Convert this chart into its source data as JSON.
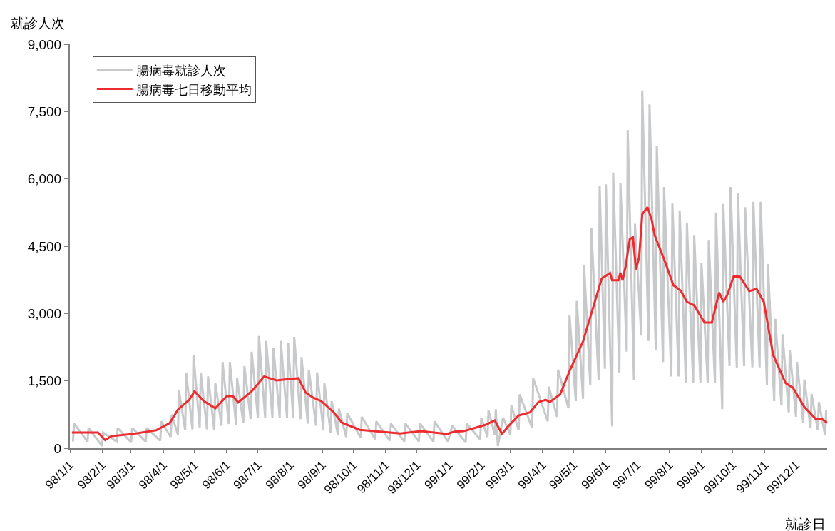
{
  "chart_data": {
    "type": "line",
    "xlabel": "就診日",
    "ylabel": "就診人次",
    "xlim": [
      "2009-01-01",
      "2010-12-31"
    ],
    "xticks": [
      {
        "value": "2009-01-01",
        "label": "98/1/1"
      },
      {
        "value": "2009-02-01",
        "label": "98/2/1"
      },
      {
        "value": "2009-03-01",
        "label": "98/3/1"
      },
      {
        "value": "2009-04-01",
        "label": "98/4/1"
      },
      {
        "value": "2009-05-01",
        "label": "98/5/1"
      },
      {
        "value": "2009-06-01",
        "label": "98/6/1"
      },
      {
        "value": "2009-07-01",
        "label": "98/7/1"
      },
      {
        "value": "2009-08-01",
        "label": "98/8/1"
      },
      {
        "value": "2009-09-01",
        "label": "98/9/1"
      },
      {
        "value": "2009-10-01",
        "label": "98/10/1"
      },
      {
        "value": "2009-11-01",
        "label": "98/11/1"
      },
      {
        "value": "2009-12-01",
        "label": "98/12/1"
      },
      {
        "value": "2010-01-01",
        "label": "99/1/1"
      },
      {
        "value": "2010-02-01",
        "label": "99/2/1"
      },
      {
        "value": "2010-03-01",
        "label": "99/3/1"
      },
      {
        "value": "2010-04-01",
        "label": "99/4/1"
      },
      {
        "value": "2010-05-01",
        "label": "99/5/1"
      },
      {
        "value": "2010-06-01",
        "label": "99/6/1"
      },
      {
        "value": "2010-07-01",
        "label": "99/7/1"
      },
      {
        "value": "2010-08-01",
        "label": "99/8/1"
      },
      {
        "value": "2010-09-01",
        "label": "99/9/1"
      },
      {
        "value": "2010-10-01",
        "label": "99/10/1"
      },
      {
        "value": "2010-11-01",
        "label": "99/11/1"
      },
      {
        "value": "2010-12-01",
        "label": "99/12/1"
      }
    ],
    "ylim": [
      0,
      9000
    ],
    "yticks": [
      0,
      {
        "value": 1500,
        "label": "1,500"
      },
      {
        "value": 3000,
        "label": "3,000"
      },
      {
        "value": 4500,
        "label": "4,500"
      },
      {
        "value": 6000,
        "label": "6,000"
      },
      {
        "value": 7500,
        "label": "7,500"
      },
      {
        "value": 9000,
        "label": "9,000"
      }
    ],
    "legend": "top left",
    "marker": "none",
    "line_style": "solid",
    "series": [
      {
        "name": "腸病毒就診人次",
        "color": "#c8c9cb",
        "x": [
          "2009-01-04",
          "2009-01-05",
          "2009-01-18",
          "2009-01-19",
          "2009-02-01",
          "2009-02-02",
          "2009-02-15",
          "2009-02-16",
          "2009-03-01",
          "2009-03-02",
          "2009-03-15",
          "2009-03-16",
          "2009-03-29",
          "2009-03-30",
          "2009-04-08",
          "2009-04-09",
          "2009-04-15",
          "2009-04-16",
          "2009-04-22",
          "2009-04-23",
          "2009-04-29",
          "2009-04-30",
          "2009-05-06",
          "2009-05-07",
          "2009-05-13",
          "2009-05-14",
          "2009-05-20",
          "2009-05-21",
          "2009-05-27",
          "2009-05-28",
          "2009-06-03",
          "2009-06-04",
          "2009-06-10",
          "2009-06-11",
          "2009-06-17",
          "2009-06-18",
          "2009-06-24",
          "2009-06-25",
          "2009-07-01",
          "2009-07-02",
          "2009-07-08",
          "2009-07-09",
          "2009-07-15",
          "2009-07-16",
          "2009-07-22",
          "2009-07-23",
          "2009-07-29",
          "2009-07-30",
          "2009-08-04",
          "2009-08-05",
          "2009-08-11",
          "2009-08-12",
          "2009-08-18",
          "2009-08-19",
          "2009-08-26",
          "2009-08-27",
          "2009-09-02",
          "2009-09-03",
          "2009-09-09",
          "2009-09-10",
          "2009-09-16",
          "2009-09-17",
          "2009-09-24",
          "2009-09-25",
          "2009-10-08",
          "2009-10-09",
          "2009-10-22",
          "2009-10-23",
          "2009-11-05",
          "2009-11-06",
          "2009-11-19",
          "2009-11-20",
          "2009-12-03",
          "2009-12-04",
          "2009-12-17",
          "2009-12-18",
          "2009-12-31",
          "2010-01-04",
          "2010-01-17",
          "2010-01-18",
          "2010-01-31",
          "2010-02-01",
          "2010-02-07",
          "2010-02-08",
          "2010-02-14",
          "2010-02-15",
          "2010-02-17",
          "2010-02-22",
          "2010-03-01",
          "2010-03-02",
          "2010-03-09",
          "2010-03-10",
          "2010-03-22",
          "2010-03-23",
          "2010-04-06",
          "2010-04-07",
          "2010-04-15",
          "2010-04-16",
          "2010-04-26",
          "2010-04-27",
          "2010-05-03",
          "2010-05-04",
          "2010-05-10",
          "2010-05-11",
          "2010-05-17",
          "2010-05-18",
          "2010-05-25",
          "2010-05-26",
          "2010-05-31",
          "2010-06-01",
          "2010-06-07",
          "2010-06-08",
          "2010-06-14",
          "2010-06-15",
          "2010-06-21",
          "2010-06-22",
          "2010-06-28",
          "2010-06-29",
          "2010-07-05",
          "2010-07-06",
          "2010-07-12",
          "2010-07-13",
          "2010-07-19",
          "2010-07-20",
          "2010-07-26",
          "2010-07-27",
          "2010-08-03",
          "2010-08-04",
          "2010-08-10",
          "2010-08-11",
          "2010-08-17",
          "2010-08-18",
          "2010-08-24",
          "2010-08-25",
          "2010-08-31",
          "2010-09-01",
          "2010-09-07",
          "2010-09-08",
          "2010-09-14",
          "2010-09-15",
          "2010-09-21",
          "2010-09-22",
          "2010-09-28",
          "2010-09-29",
          "2010-10-05",
          "2010-10-06",
          "2010-10-12",
          "2010-10-13",
          "2010-10-20",
          "2010-10-21",
          "2010-10-27",
          "2010-10-28",
          "2010-11-03",
          "2010-11-04",
          "2010-11-10",
          "2010-11-11",
          "2010-11-17",
          "2010-11-18",
          "2010-11-24",
          "2010-11-25",
          "2010-12-01",
          "2010-12-02",
          "2010-12-08",
          "2010-12-09",
          "2010-12-15",
          "2010-12-16",
          "2010-12-22",
          "2010-12-23",
          "2010-12-29",
          "2010-12-30",
          "2010-12-31"
        ],
        "values": [
          150,
          550,
          150,
          450,
          50,
          350,
          150,
          450,
          130,
          450,
          150,
          450,
          170,
          600,
          250,
          750,
          300,
          1290,
          400,
          1670,
          420,
          2080,
          450,
          1670,
          420,
          1600,
          400,
          1450,
          500,
          1920,
          540,
          1920,
          520,
          1560,
          560,
          1830,
          650,
          2150,
          680,
          2500,
          680,
          2390,
          680,
          2230,
          680,
          2390,
          680,
          2350,
          680,
          2480,
          650,
          2030,
          550,
          1750,
          500,
          1690,
          400,
          1450,
          350,
          1050,
          300,
          880,
          250,
          780,
          230,
          700,
          200,
          600,
          170,
          550,
          150,
          550,
          150,
          550,
          150,
          600,
          150,
          500,
          130,
          550,
          200,
          680,
          250,
          840,
          300,
          870,
          50,
          680,
          300,
          950,
          400,
          1200,
          450,
          1560,
          600,
          1370,
          700,
          1750,
          890,
          2960,
          1050,
          3280,
          1100,
          4070,
          1400,
          4900,
          1510,
          5850,
          1770,
          5880,
          490,
          6140,
          1670,
          5900,
          2150,
          7090,
          1510,
          5000,
          2510,
          7970,
          2390,
          7660,
          2190,
          6740,
          1920,
          5820,
          1600,
          5450,
          1600,
          5300,
          1450,
          5010,
          1450,
          4750,
          1450,
          4130,
          1450,
          4640,
          1450,
          5250,
          870,
          5440,
          1830,
          5820,
          1790,
          5690,
          1830,
          5370,
          1800,
          5490,
          1800,
          5490,
          1400,
          4100,
          1050,
          2880,
          950,
          2540,
          800,
          2190,
          700,
          1920,
          560,
          1530,
          450,
          1210,
          400,
          1030,
          290,
          840,
          550
        ]
      },
      {
        "name": "腸病毒七日移動平均",
        "color": "#ee2b2e",
        "x": [
          "2009-01-03",
          "2009-01-28",
          "2009-02-04",
          "2009-02-10",
          "2009-03-03",
          "2009-03-25",
          "2009-04-07",
          "2009-04-15",
          "2009-04-26",
          "2009-05-01",
          "2009-05-10",
          "2009-05-21",
          "2009-06-01",
          "2009-06-07",
          "2009-06-12",
          "2009-06-25",
          "2009-07-07",
          "2009-07-19",
          "2009-07-30",
          "2009-08-09",
          "2009-08-16",
          "2009-08-23",
          "2009-08-31",
          "2009-09-12",
          "2009-09-20",
          "2009-10-07",
          "2009-11-15",
          "2009-12-05",
          "2009-12-30",
          "2010-01-06",
          "2010-01-15",
          "2010-02-05",
          "2010-02-14",
          "2010-02-21",
          "2010-02-27",
          "2010-03-09",
          "2010-03-20",
          "2010-03-28",
          "2010-04-04",
          "2010-04-08",
          "2010-04-18",
          "2010-04-27",
          "2010-05-10",
          "2010-05-28",
          "2010-06-05",
          "2010-06-07",
          "2010-06-13",
          "2010-06-15",
          "2010-06-17",
          "2010-06-20",
          "2010-06-24",
          "2010-06-27",
          "2010-06-30",
          "2010-07-03",
          "2010-07-06",
          "2010-07-11",
          "2010-07-15",
          "2010-07-18",
          "2010-07-27",
          "2010-08-05",
          "2010-08-12",
          "2010-08-18",
          "2010-08-25",
          "2010-09-04",
          "2010-09-11",
          "2010-09-18",
          "2010-09-22",
          "2010-09-26",
          "2010-10-02",
          "2010-10-08",
          "2010-10-17",
          "2010-10-24",
          "2010-10-31",
          "2010-11-09",
          "2010-11-21",
          "2010-11-28",
          "2010-12-09",
          "2010-12-20",
          "2010-12-26",
          "2010-12-31"
        ],
        "values": [
          350,
          350,
          180,
          270,
          320,
          400,
          560,
          860,
          1080,
          1270,
          1050,
          890,
          1160,
          1160,
          1020,
          1270,
          1600,
          1510,
          1540,
          1560,
          1240,
          1130,
          1050,
          800,
          570,
          410,
          330,
          380,
          320,
          370,
          380,
          520,
          620,
          320,
          490,
          730,
          800,
          1030,
          1080,
          1030,
          1200,
          1720,
          2380,
          3780,
          3900,
          3740,
          3740,
          3910,
          3740,
          4050,
          4660,
          4700,
          3980,
          4260,
          5210,
          5370,
          5100,
          4740,
          4210,
          3630,
          3510,
          3260,
          3180,
          2800,
          2800,
          3470,
          3260,
          3420,
          3830,
          3820,
          3500,
          3550,
          3260,
          2080,
          1450,
          1350,
          920,
          650,
          650,
          570
        ]
      }
    ]
  }
}
